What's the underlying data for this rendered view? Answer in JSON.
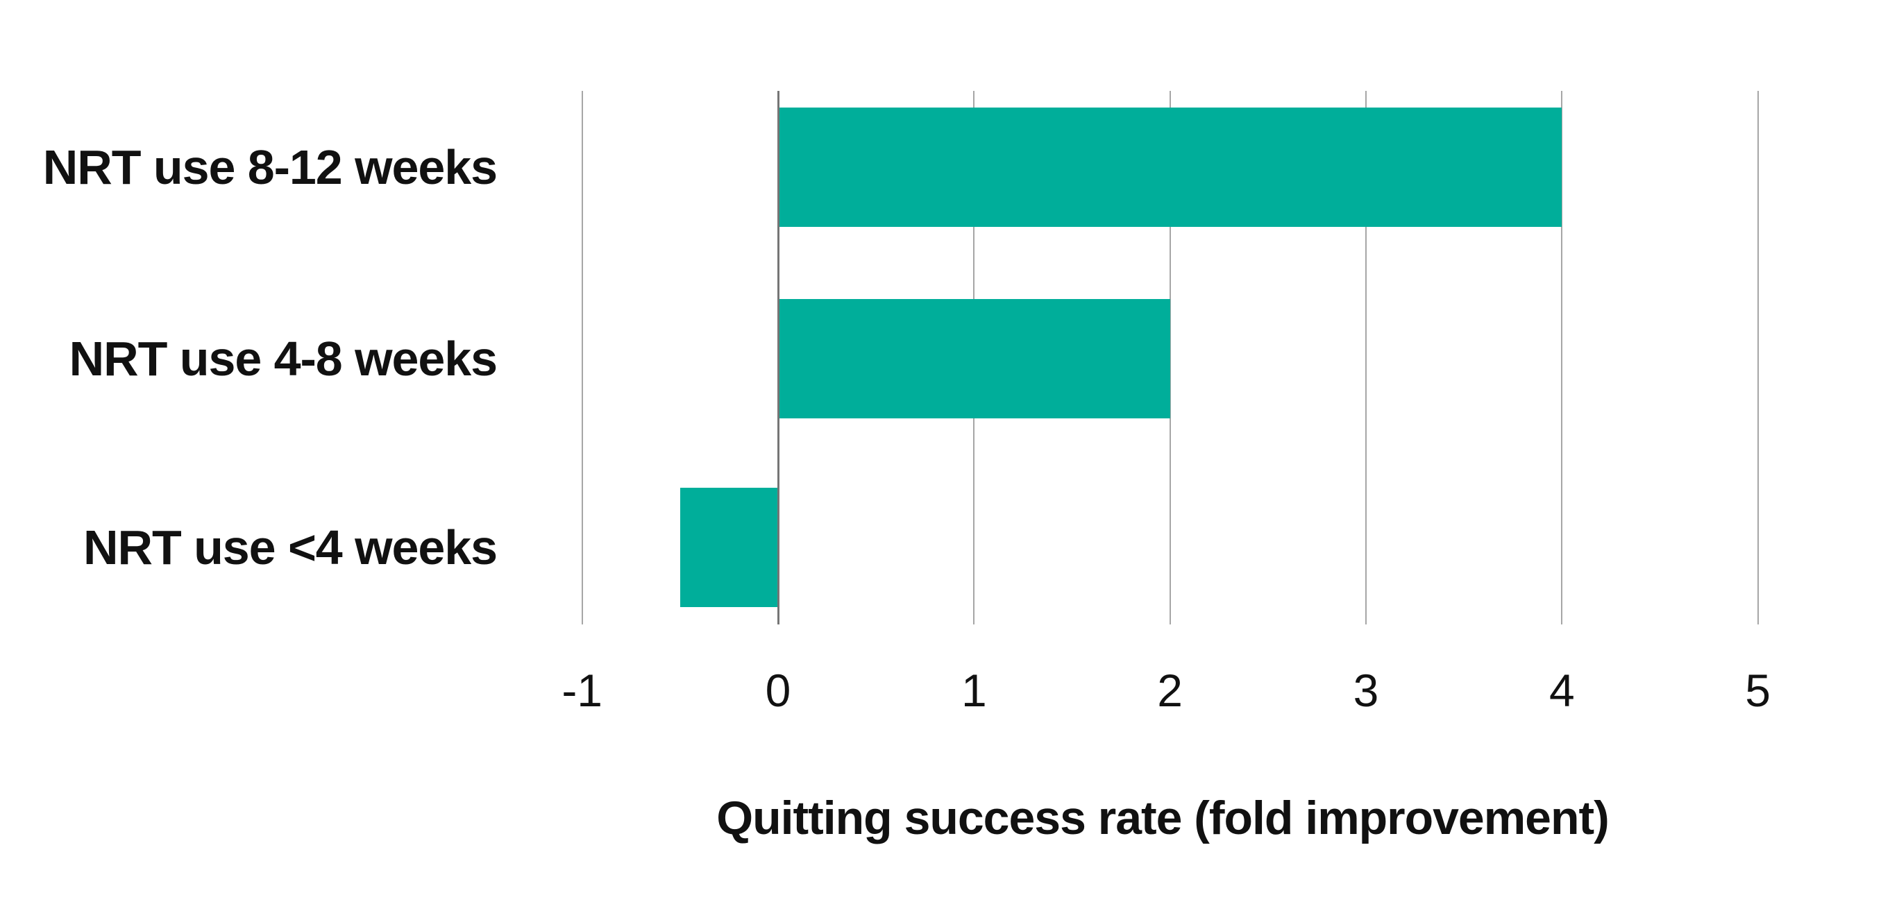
{
  "chart_data": {
    "type": "bar",
    "orientation": "horizontal",
    "title": "",
    "categories": [
      "NRT use 8-12 weeks",
      "NRT use 4-8 weeks",
      "NRT use <4 weeks"
    ],
    "values": [
      4,
      2,
      -0.5
    ],
    "series_name": "Quitting success rate",
    "xlabel": "Quitting success rate (fold improvement)",
    "ylabel": "",
    "xlim": [
      -1,
      5
    ],
    "xticks": [
      -1,
      0,
      1,
      2,
      3,
      4,
      5
    ],
    "grid": true,
    "legend": false,
    "bar_color": "#00ae9a",
    "gridline_color": "#a6a6a6",
    "zero_line_color": "#757575",
    "text_color": "#111111",
    "background_color": "#ffffff"
  }
}
